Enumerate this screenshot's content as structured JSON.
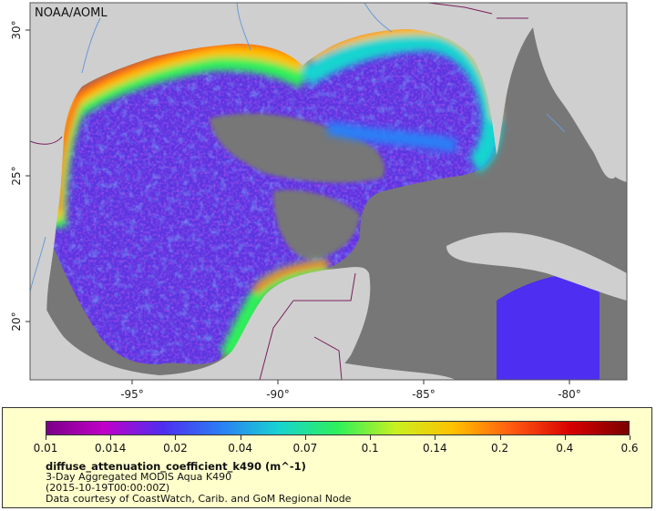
{
  "map": {
    "credit": "NOAA/AOML",
    "lat_labels": [
      "30°",
      "25°",
      "20°"
    ],
    "lon_labels": [
      "-95°",
      "-90°",
      "-85°",
      "-80°"
    ],
    "colors": {
      "land": "#cfcfcf",
      "no_data": "#777777",
      "borders": "#7a1f5c",
      "rivers": "#6a9ad6"
    }
  },
  "legend": {
    "variable": "diffuse_attenuation_coefficient_k490 (m^-1)",
    "product": "3-Day Aggregated MODIS Aqua K490",
    "date": "(2015-10-19T00:00:00Z)",
    "credit": "Data courtesy of CoastWatch, Carib. and GoM Regional Node",
    "ticks": [
      "0.01",
      "0.014",
      "0.02",
      "0.04",
      "0.07",
      "0.1",
      "0.14",
      "0.2",
      "0.4",
      "0.6"
    ],
    "colormap": [
      "#7a0088",
      "#c000c8",
      "#4e2ef0",
      "#2a7ff5",
      "#18d4d0",
      "#2ef05a",
      "#c8f020",
      "#ffc000",
      "#ff5a10",
      "#d80000",
      "#7a0000"
    ]
  }
}
